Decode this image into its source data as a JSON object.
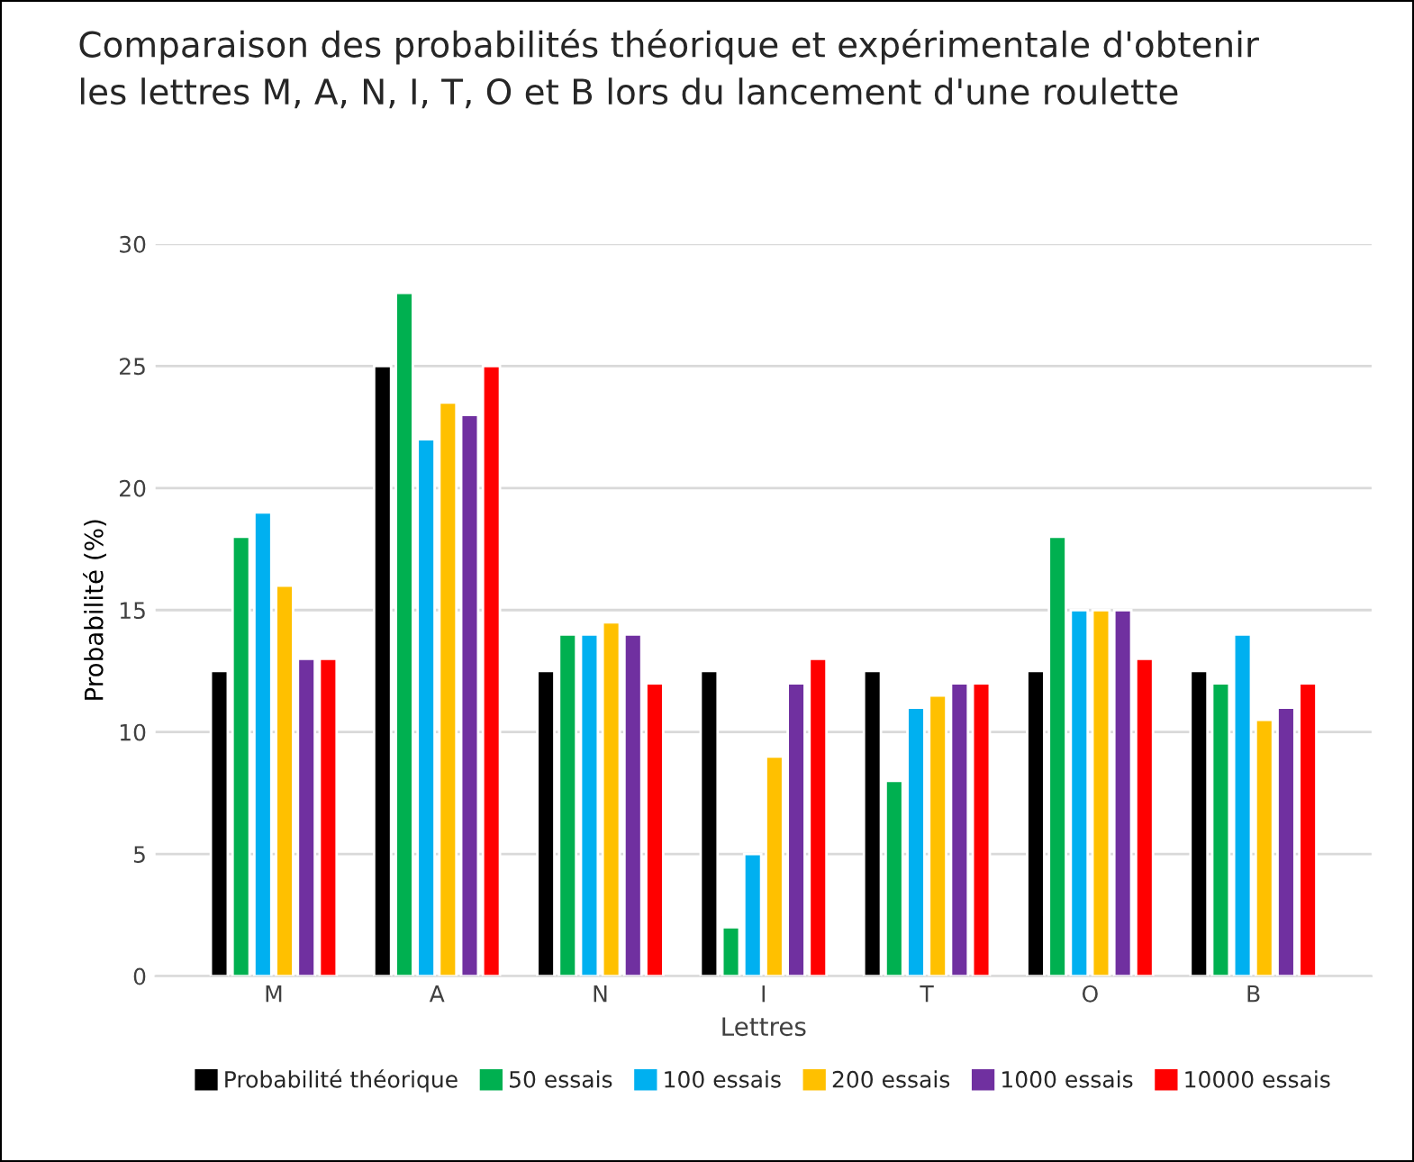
{
  "chart_data": {
    "type": "bar",
    "title": "Comparaison des probabilités théorique et expérimentale d'obtenir\nles lettres M, A, N, I, T, O et B lors du lancement d'une roulette",
    "xlabel": "Lettres",
    "ylabel": "Probabilité (%)",
    "categories": [
      "M",
      "A",
      "N",
      "I",
      "T",
      "O",
      "B"
    ],
    "series": [
      {
        "name": "Probabilité théorique",
        "color": "#000000",
        "values": [
          12.5,
          25,
          12.5,
          12.5,
          12.5,
          12.5,
          12.5
        ]
      },
      {
        "name": "50 essais",
        "color": "#00b050",
        "values": [
          18,
          28,
          14,
          2,
          8,
          18,
          12
        ]
      },
      {
        "name": "100 essais",
        "color": "#00b0f0",
        "values": [
          19,
          22,
          14,
          5,
          11,
          15,
          14
        ]
      },
      {
        "name": "200 essais",
        "color": "#ffc000",
        "values": [
          16,
          23.5,
          14.5,
          9,
          11.5,
          15,
          10.5
        ]
      },
      {
        "name": "1000 essais",
        "color": "#7030a0",
        "values": [
          13,
          23,
          14,
          12,
          12,
          15,
          11
        ]
      },
      {
        "name": "10000 essais",
        "color": "#ff0000",
        "values": [
          13,
          25,
          12,
          13,
          12,
          13,
          12
        ]
      }
    ],
    "ylim": [
      0,
      30
    ],
    "yticks": [
      0,
      5,
      10,
      15,
      20,
      25,
      30
    ],
    "grid": "y",
    "legend": "bottom"
  }
}
